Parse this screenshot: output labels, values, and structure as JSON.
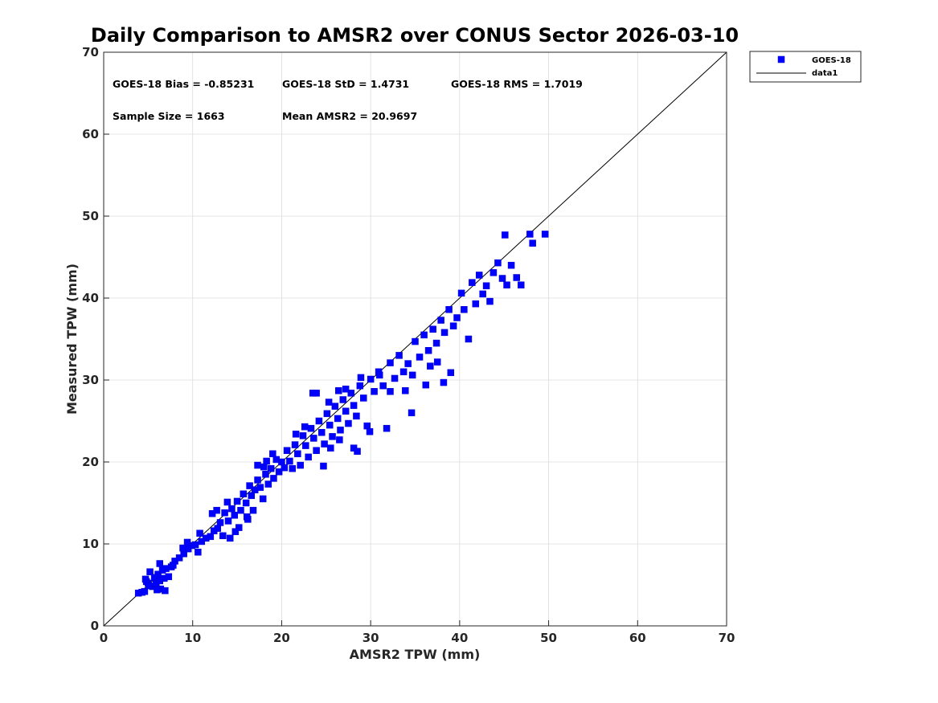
{
  "chart_data": {
    "type": "scatter",
    "title": "Daily Comparison to AMSR2 over CONUS Sector 2026-03-10",
    "xlabel": "AMSR2 TPW (mm)",
    "ylabel": "Measured TPW (mm)",
    "xlim": [
      0,
      70
    ],
    "ylim": [
      0,
      70
    ],
    "xticks": [
      0,
      10,
      20,
      30,
      40,
      50,
      60,
      70
    ],
    "yticks": [
      0,
      10,
      20,
      30,
      40,
      50,
      60,
      70
    ],
    "grid": true,
    "legend_position": "outside-top-right",
    "legend": [
      "GOES-18",
      "data1"
    ],
    "stats": [
      "GOES-18 Bias = -0.85231",
      "GOES-18 StD = 1.4731",
      "GOES-18 RMS = 1.7019",
      "Sample Size = 1663",
      "Mean AMSR2 = 20.9697"
    ],
    "series": [
      {
        "name": "GOES-18",
        "marker": "square",
        "color": "#0000ff",
        "points": [
          [
            3.9,
            4.0
          ],
          [
            4.3,
            4.1
          ],
          [
            4.6,
            4.2
          ],
          [
            5.0,
            5.2
          ],
          [
            5.2,
            6.6
          ],
          [
            4.8,
            5.4
          ],
          [
            5.5,
            4.8
          ],
          [
            5.9,
            5.2
          ],
          [
            6.1,
            6.3
          ],
          [
            6.4,
            4.5
          ],
          [
            6.8,
            5.8
          ],
          [
            7.0,
            7.0
          ],
          [
            7.3,
            6.0
          ],
          [
            6.6,
            6.8
          ],
          [
            5.7,
            5.9
          ],
          [
            6.3,
            5.5
          ],
          [
            6.9,
            4.3
          ],
          [
            7.6,
            7.2
          ],
          [
            8.0,
            7.9
          ],
          [
            8.5,
            8.3
          ],
          [
            9.0,
            8.8
          ],
          [
            9.5,
            9.4
          ],
          [
            9.9,
            9.8
          ],
          [
            10.6,
            9.0
          ],
          [
            10.3,
            9.9
          ],
          [
            11.0,
            10.3
          ],
          [
            11.5,
            10.7
          ],
          [
            12.0,
            10.9
          ],
          [
            12.4,
            11.6
          ],
          [
            12.8,
            11.9
          ],
          [
            13.1,
            12.6
          ],
          [
            13.4,
            11.0
          ],
          [
            13.6,
            13.8
          ],
          [
            14.0,
            12.8
          ],
          [
            14.2,
            10.7
          ],
          [
            14.4,
            14.3
          ],
          [
            14.7,
            13.5
          ],
          [
            15.0,
            15.2
          ],
          [
            15.2,
            12.0
          ],
          [
            15.4,
            14.1
          ],
          [
            15.7,
            16.1
          ],
          [
            16.0,
            15.0
          ],
          [
            16.2,
            13.0
          ],
          [
            16.4,
            17.1
          ],
          [
            16.6,
            15.9
          ],
          [
            16.8,
            14.1
          ],
          [
            17.0,
            16.6
          ],
          [
            17.3,
            17.8
          ],
          [
            17.6,
            16.9
          ],
          [
            17.9,
            15.5
          ],
          [
            18.2,
            18.5
          ],
          [
            18.5,
            17.3
          ],
          [
            18.8,
            19.2
          ],
          [
            19.1,
            18.0
          ],
          [
            19.4,
            20.3
          ],
          [
            19.7,
            18.8
          ],
          [
            20.0,
            20.0
          ],
          [
            20.3,
            19.3
          ],
          [
            20.6,
            21.4
          ],
          [
            20.9,
            20.1
          ],
          [
            21.2,
            19.2
          ],
          [
            21.5,
            22.1
          ],
          [
            21.8,
            21.0
          ],
          [
            22.1,
            19.6
          ],
          [
            22.4,
            23.2
          ],
          [
            22.7,
            22.0
          ],
          [
            23.0,
            20.6
          ],
          [
            23.3,
            24.1
          ],
          [
            23.6,
            22.9
          ],
          [
            23.9,
            21.4
          ],
          [
            24.2,
            25.0
          ],
          [
            24.5,
            23.6
          ],
          [
            24.8,
            22.2
          ],
          [
            25.1,
            25.9
          ],
          [
            25.4,
            24.5
          ],
          [
            25.7,
            23.1
          ],
          [
            26.0,
            26.8
          ],
          [
            26.3,
            25.3
          ],
          [
            26.6,
            23.9
          ],
          [
            26.9,
            27.6
          ],
          [
            27.2,
            26.2
          ],
          [
            27.5,
            24.7
          ],
          [
            27.8,
            28.4
          ],
          [
            28.1,
            26.9
          ],
          [
            28.4,
            25.6
          ],
          [
            28.8,
            29.3
          ],
          [
            29.2,
            27.8
          ],
          [
            29.6,
            24.4
          ],
          [
            30.0,
            30.1
          ],
          [
            30.4,
            28.6
          ],
          [
            30.9,
            31.0
          ],
          [
            31.4,
            29.3
          ],
          [
            31.8,
            24.1
          ],
          [
            32.2,
            32.1
          ],
          [
            32.7,
            30.2
          ],
          [
            33.2,
            33.0
          ],
          [
            33.7,
            31.0
          ],
          [
            34.2,
            32.0
          ],
          [
            34.6,
            26.0
          ],
          [
            35.0,
            34.7
          ],
          [
            35.5,
            32.8
          ],
          [
            36.0,
            35.5
          ],
          [
            36.5,
            33.6
          ],
          [
            37.0,
            36.2
          ],
          [
            37.4,
            34.5
          ],
          [
            37.9,
            37.3
          ],
          [
            38.3,
            35.8
          ],
          [
            38.8,
            38.6
          ],
          [
            39.3,
            36.6
          ],
          [
            39.7,
            37.6
          ],
          [
            40.2,
            40.6
          ],
          [
            40.5,
            38.6
          ],
          [
            41.0,
            35.0
          ],
          [
            41.4,
            41.9
          ],
          [
            41.8,
            39.3
          ],
          [
            42.2,
            42.8
          ],
          [
            42.6,
            40.5
          ],
          [
            43.0,
            41.5
          ],
          [
            43.4,
            39.6
          ],
          [
            43.8,
            43.1
          ],
          [
            44.3,
            44.3
          ],
          [
            44.8,
            42.4
          ],
          [
            45.3,
            41.6
          ],
          [
            45.1,
            47.7
          ],
          [
            45.8,
            44.0
          ],
          [
            46.4,
            42.5
          ],
          [
            46.9,
            41.6
          ],
          [
            47.9,
            47.8
          ],
          [
            48.2,
            46.7
          ],
          [
            49.6,
            47.8
          ],
          [
            12.7,
            14.1
          ],
          [
            13.9,
            15.1
          ],
          [
            14.8,
            11.5
          ],
          [
            16.1,
            13.3
          ],
          [
            18.0,
            19.4
          ],
          [
            19.0,
            21.0
          ],
          [
            21.6,
            23.4
          ],
          [
            22.6,
            24.3
          ],
          [
            23.5,
            28.4
          ],
          [
            23.9,
            28.4
          ],
          [
            24.7,
            19.5
          ],
          [
            25.5,
            21.7
          ],
          [
            26.5,
            22.7
          ],
          [
            28.1,
            21.7
          ],
          [
            28.5,
            21.3
          ],
          [
            29.9,
            23.7
          ],
          [
            31.0,
            30.6
          ],
          [
            32.2,
            28.6
          ],
          [
            33.9,
            28.7
          ],
          [
            34.7,
            30.6
          ],
          [
            36.7,
            31.7
          ],
          [
            37.5,
            32.2
          ],
          [
            38.2,
            29.7
          ],
          [
            39.0,
            30.9
          ],
          [
            36.2,
            29.4
          ],
          [
            27.2,
            28.9
          ],
          [
            28.9,
            30.3
          ],
          [
            26.4,
            28.7
          ],
          [
            25.3,
            27.3
          ],
          [
            17.3,
            19.6
          ],
          [
            18.3,
            20.1
          ],
          [
            12.2,
            13.7
          ],
          [
            10.8,
            11.3
          ],
          [
            9.4,
            10.2
          ],
          [
            8.9,
            9.5
          ],
          [
            7.8,
            7.4
          ],
          [
            6.3,
            7.6
          ],
          [
            5.1,
            4.9
          ],
          [
            4.7,
            5.7
          ],
          [
            6.0,
            4.4
          ]
        ]
      },
      {
        "name": "data1",
        "type": "line",
        "color": "#000000",
        "x": [
          0,
          70
        ],
        "y": [
          0,
          70
        ]
      }
    ]
  }
}
